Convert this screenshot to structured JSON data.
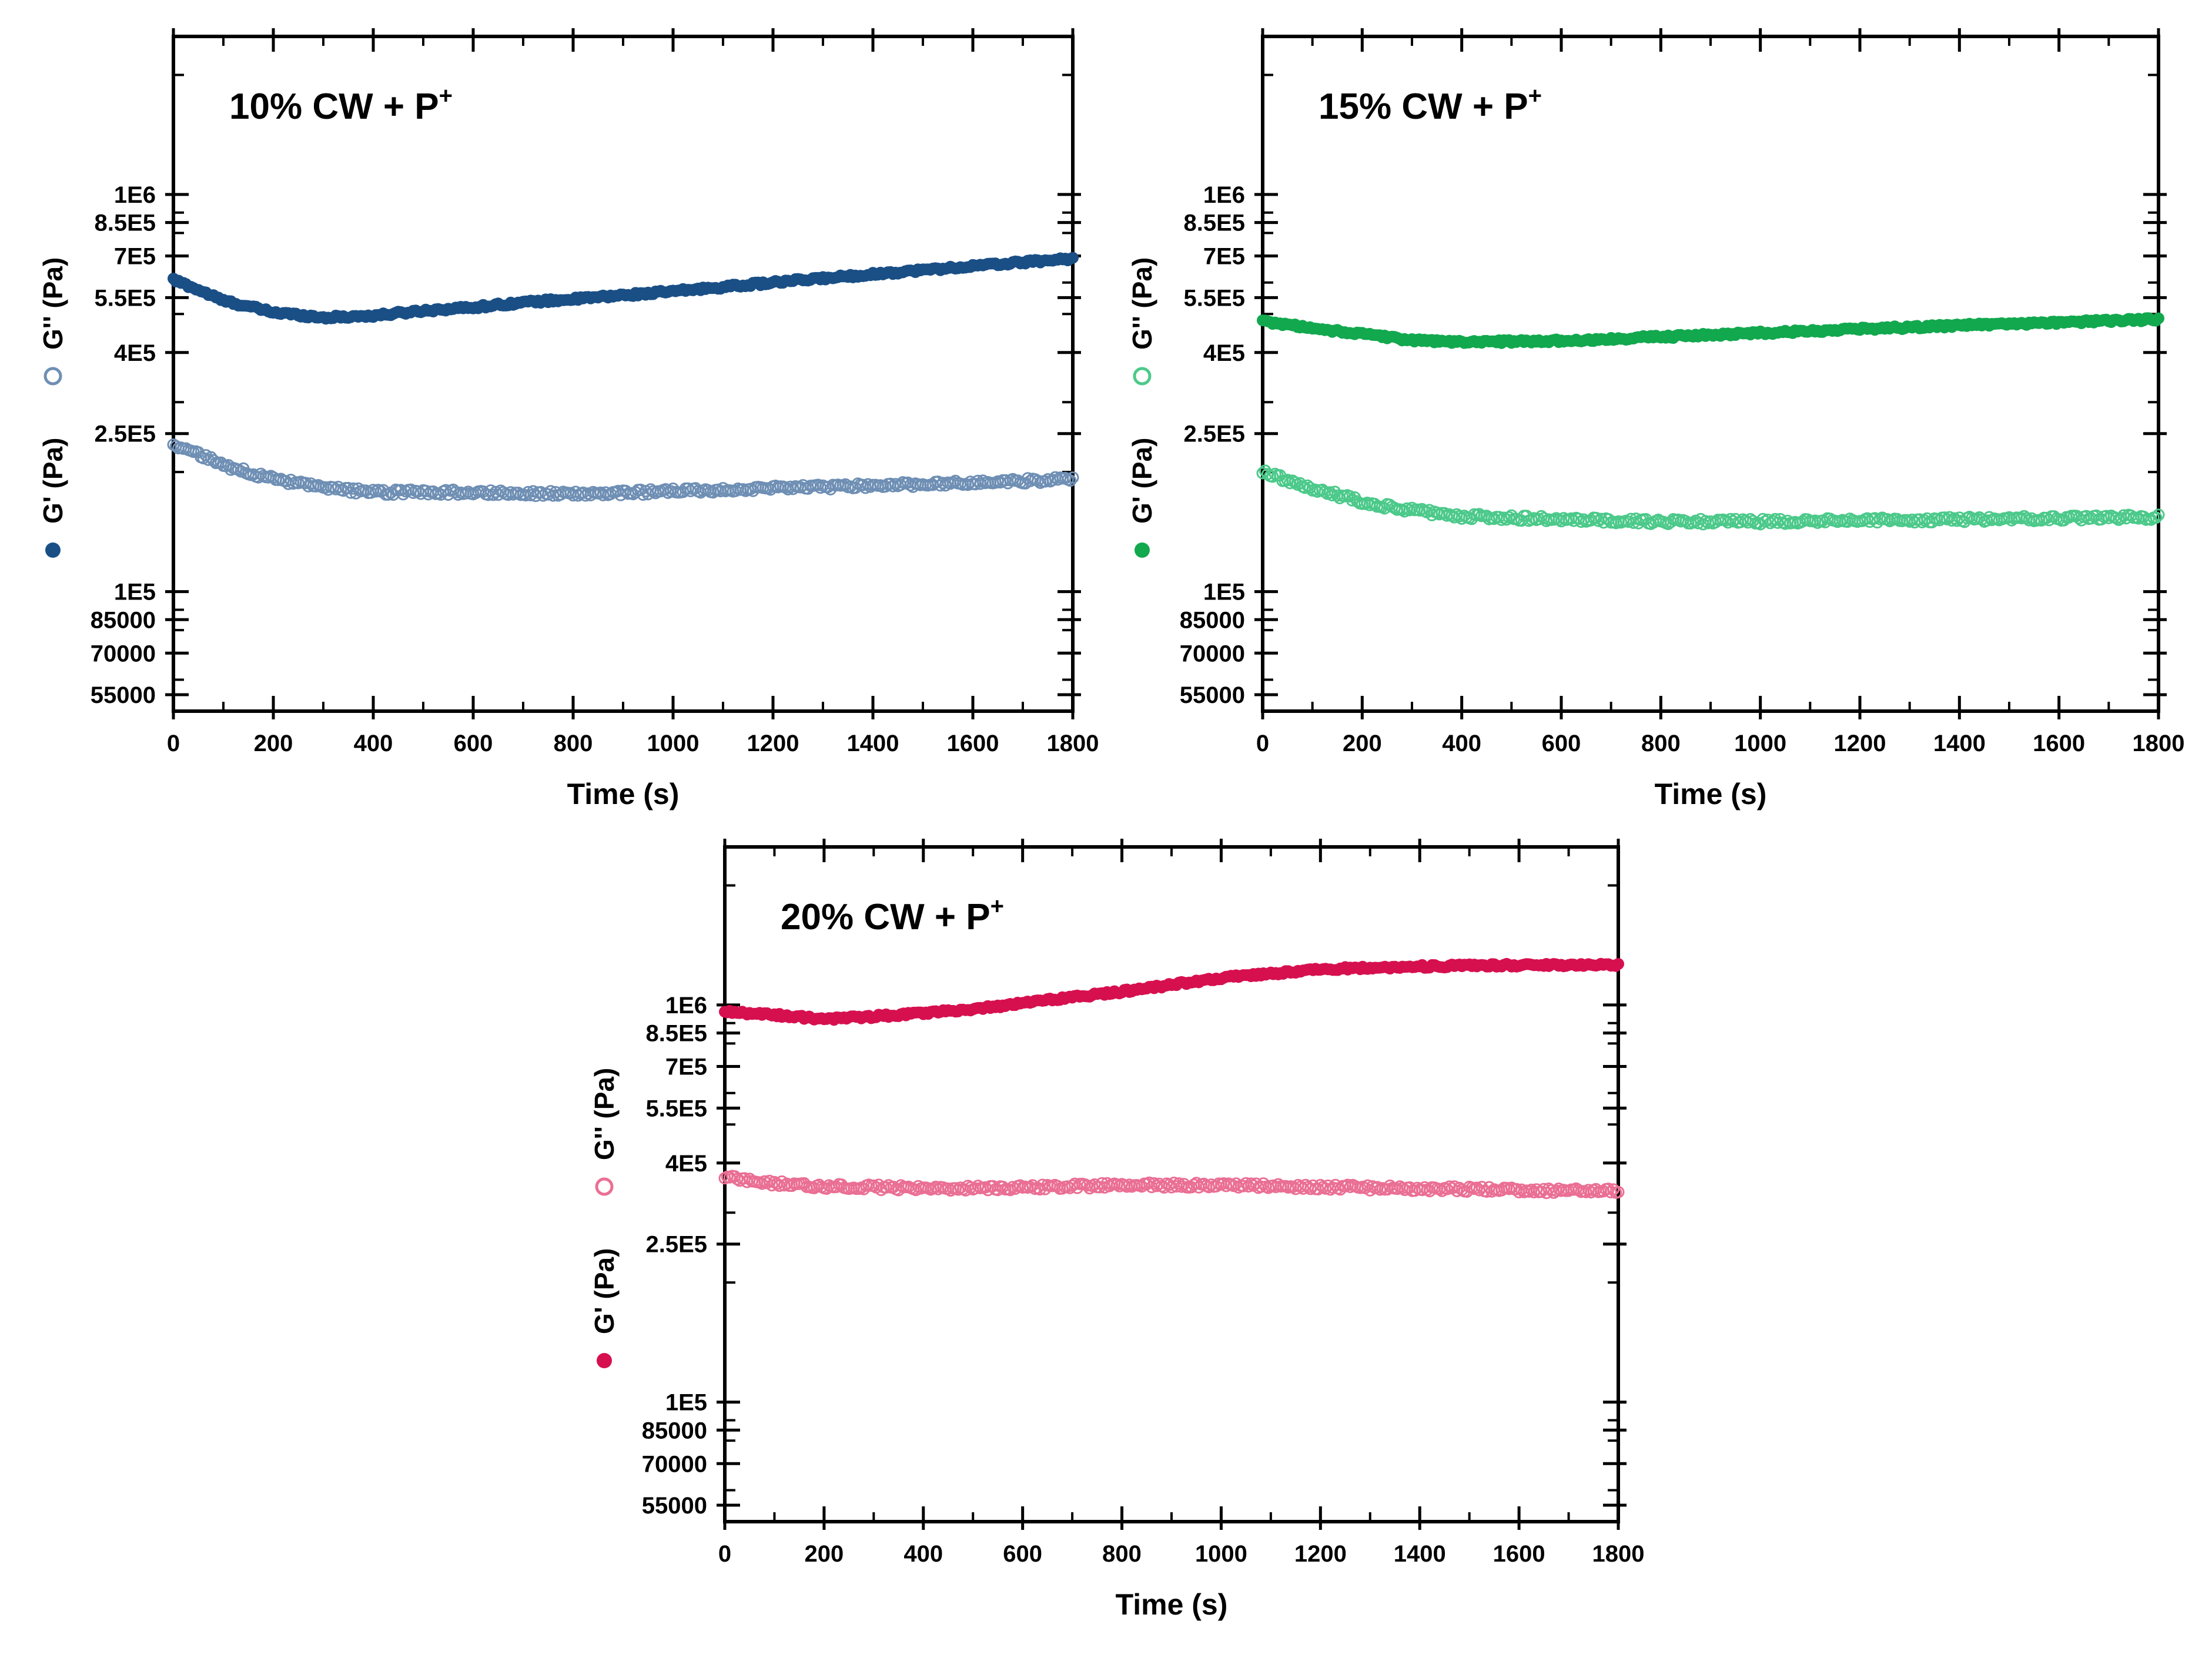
{
  "figure": {
    "type": "panel-of-line-charts"
  },
  "chart_data": [
    {
      "id": "cw10",
      "type": "scatter",
      "title": "10% CW + P",
      "title_superscript": "+",
      "xlabel": "Time (s)",
      "xlim": [
        0,
        1800
      ],
      "x_ticks": [
        "0",
        "200",
        "400",
        "600",
        "800",
        "1000",
        "1200",
        "1400",
        "1600",
        "1800"
      ],
      "y_scale": "log",
      "ylim": [
        50000,
        2500000
      ],
      "y_ticks": [
        {
          "value": 1000000,
          "label": "1E6"
        },
        {
          "value": 850000,
          "label": "8.5E5"
        },
        {
          "value": 700000,
          "label": "7E5"
        },
        {
          "value": 550000,
          "label": "5.5E5"
        },
        {
          "value": 400000,
          "label": "4E5"
        },
        {
          "value": 250000,
          "label": "2.5E5"
        },
        {
          "value": 100000,
          "label": "1E5"
        },
        {
          "value": 85000,
          "label": "85000"
        },
        {
          "value": 70000,
          "label": "70000"
        },
        {
          "value": 55000,
          "label": "55000"
        }
      ],
      "ylabel_gp": "G' (Pa)",
      "ylabel_gpp": "G'' (Pa)",
      "series": [
        {
          "name": "G' (Pa)",
          "marker": "filled-circle",
          "color": "#1a4f86",
          "x": [
            0,
            100,
            200,
            300,
            400,
            500,
            600,
            700,
            800,
            1000,
            1200,
            1400,
            1600,
            1800
          ],
          "values": [
            610000,
            540000,
            505000,
            490000,
            495000,
            510000,
            520000,
            535000,
            545000,
            570000,
            600000,
            630000,
            660000,
            690000
          ]
        },
        {
          "name": "G'' (Pa)",
          "marker": "open-circle",
          "color": "#6f8fb4",
          "x": [
            0,
            100,
            200,
            300,
            400,
            600,
            800,
            1000,
            1200,
            1400,
            1600,
            1800
          ],
          "values": [
            235000,
            208000,
            192000,
            182000,
            178000,
            178000,
            176000,
            179000,
            182000,
            185000,
            188000,
            192000
          ]
        }
      ]
    },
    {
      "id": "cw15",
      "type": "scatter",
      "title": "15% CW + P",
      "title_superscript": "+",
      "xlabel": "Time (s)",
      "xlim": [
        0,
        1800
      ],
      "x_ticks": [
        "0",
        "200",
        "400",
        "600",
        "800",
        "1000",
        "1200",
        "1400",
        "1600",
        "1800"
      ],
      "y_scale": "log",
      "ylim": [
        50000,
        2500000
      ],
      "y_ticks": [
        {
          "value": 1000000,
          "label": "1E6"
        },
        {
          "value": 850000,
          "label": "8.5E5"
        },
        {
          "value": 700000,
          "label": "7E5"
        },
        {
          "value": 550000,
          "label": "5.5E5"
        },
        {
          "value": 400000,
          "label": "4E5"
        },
        {
          "value": 250000,
          "label": "2.5E5"
        },
        {
          "value": 100000,
          "label": "1E5"
        },
        {
          "value": 85000,
          "label": "85000"
        },
        {
          "value": 70000,
          "label": "70000"
        },
        {
          "value": 55000,
          "label": "55000"
        }
      ],
      "ylabel_gp": "G' (Pa)",
      "ylabel_gpp": "G'' (Pa)",
      "series": [
        {
          "name": "G' (Pa)",
          "marker": "filled-circle",
          "color": "#12a84e",
          "x": [
            0,
            100,
            200,
            300,
            400,
            600,
            800,
            1000,
            1200,
            1400,
            1600,
            1800
          ],
          "values": [
            480000,
            460000,
            445000,
            430000,
            425000,
            428000,
            438000,
            448000,
            458000,
            468000,
            476000,
            485000
          ]
        },
        {
          "name": "G'' (Pa)",
          "marker": "open-circle",
          "color": "#4cc98a",
          "x": [
            0,
            100,
            200,
            300,
            400,
            600,
            800,
            1000,
            1200,
            1400,
            1600,
            1800
          ],
          "values": [
            200000,
            182000,
            168000,
            160000,
            155000,
            152000,
            150000,
            150000,
            151000,
            152000,
            153000,
            154000
          ]
        }
      ]
    },
    {
      "id": "cw20",
      "type": "scatter",
      "title": "20% CW + P",
      "title_superscript": "+",
      "xlabel": "Time (s)",
      "xlim": [
        0,
        1800
      ],
      "x_ticks": [
        "0",
        "200",
        "400",
        "600",
        "800",
        "1000",
        "1200",
        "1400",
        "1600",
        "1800"
      ],
      "y_scale": "log",
      "ylim": [
        50000,
        2500000
      ],
      "y_ticks": [
        {
          "value": 1000000,
          "label": "1E6"
        },
        {
          "value": 850000,
          "label": "8.5E5"
        },
        {
          "value": 700000,
          "label": "7E5"
        },
        {
          "value": 550000,
          "label": "5.5E5"
        },
        {
          "value": 400000,
          "label": "4E5"
        },
        {
          "value": 250000,
          "label": "2.5E5"
        },
        {
          "value": 100000,
          "label": "1E5"
        },
        {
          "value": 85000,
          "label": "85000"
        },
        {
          "value": 70000,
          "label": "70000"
        },
        {
          "value": 55000,
          "label": "55000"
        }
      ],
      "ylabel_gp": "G' (Pa)",
      "ylabel_gpp": "G'' (Pa)",
      "series": [
        {
          "name": "G' (Pa)",
          "marker": "filled-circle",
          "color": "#d6104f",
          "x": [
            0,
            100,
            200,
            300,
            400,
            500,
            600,
            800,
            1000,
            1200,
            1400,
            1600,
            1800
          ],
          "values": [
            960000,
            945000,
            920000,
            935000,
            955000,
            975000,
            1010000,
            1080000,
            1170000,
            1230000,
            1250000,
            1260000,
            1265000
          ]
        },
        {
          "name": "G'' (Pa)",
          "marker": "open-circle",
          "color": "#ea6f94",
          "x": [
            0,
            100,
            200,
            400,
            600,
            800,
            1000,
            1200,
            1400,
            1600,
            1800
          ],
          "values": [
            370000,
            355000,
            350000,
            345000,
            347000,
            352000,
            352000,
            348000,
            345000,
            342000,
            340000
          ]
        }
      ]
    }
  ]
}
